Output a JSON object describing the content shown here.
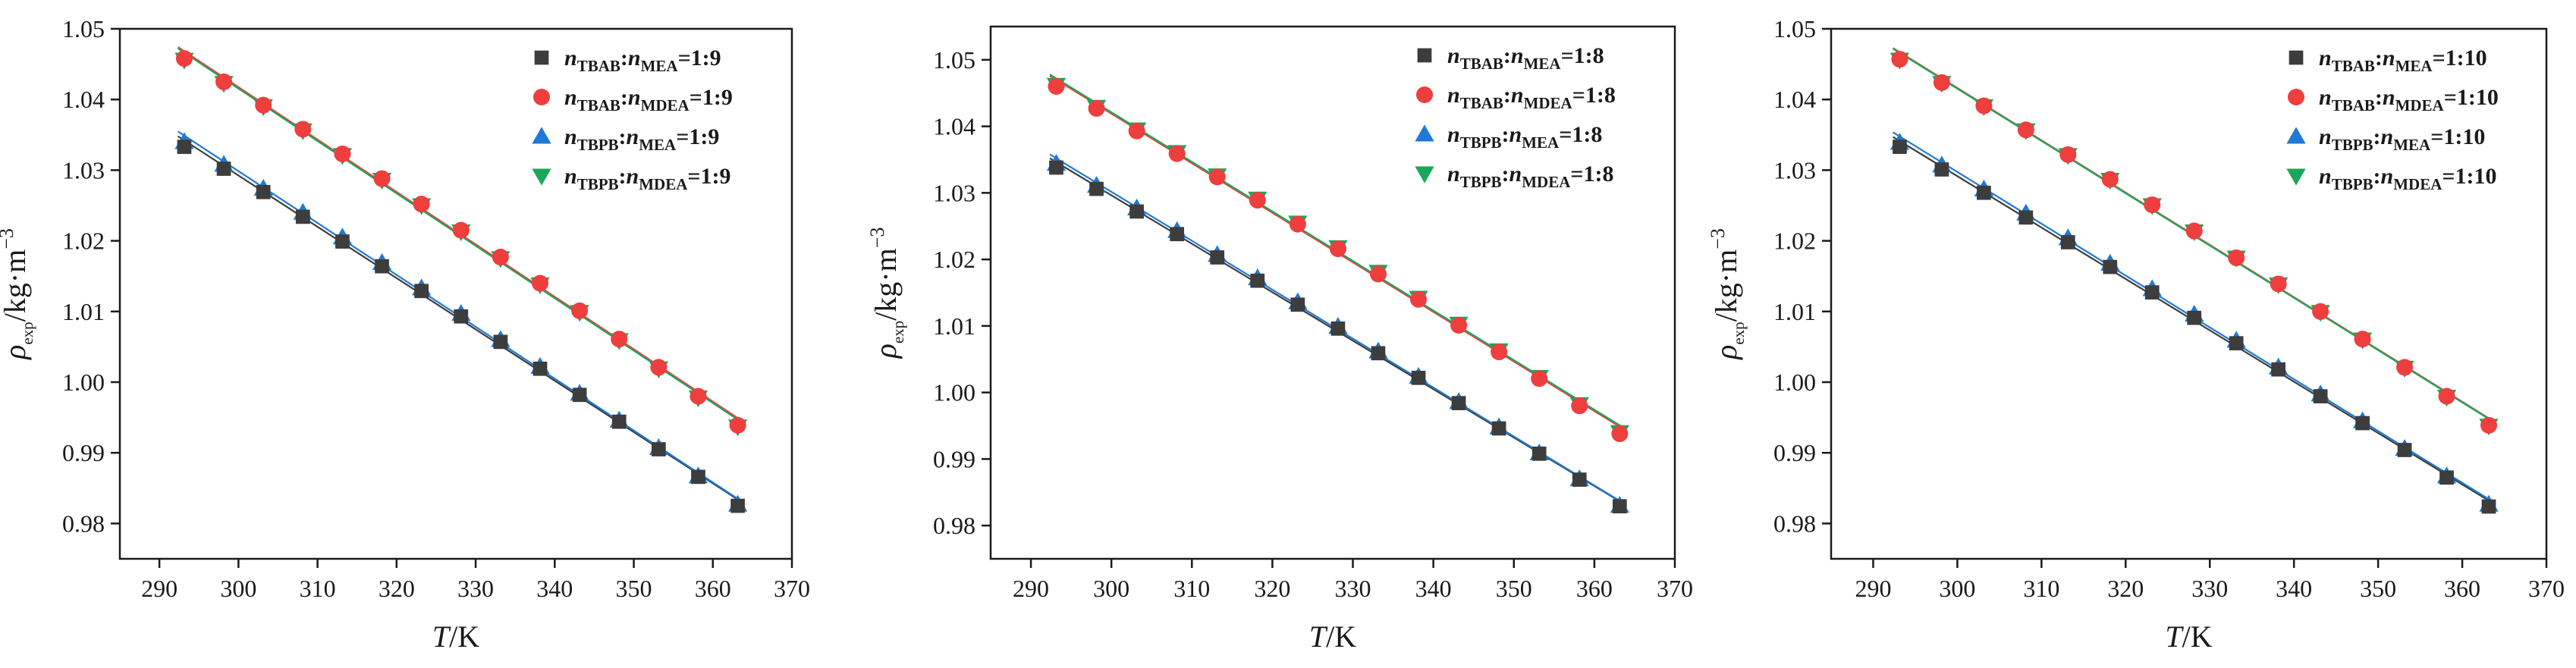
{
  "chart_data": [
    {
      "type": "scatter",
      "panel": "left",
      "title": "",
      "xlabel": {
        "var": "T",
        "unit": "/K"
      },
      "ylabel": {
        "var": "ρ",
        "sub": "exp",
        "unit": "/kg·m",
        "sup": "−3"
      },
      "xlim": [
        285,
        370
      ],
      "ylim": [
        0.975,
        1.05
      ],
      "xticks": [
        290,
        300,
        310,
        320,
        330,
        340,
        350,
        360,
        370
      ],
      "yticks": [
        0.98,
        0.99,
        1.0,
        1.01,
        1.02,
        1.03,
        1.04,
        1.05
      ],
      "ytick_labels": [
        "0.98",
        "0.99",
        "1.00",
        "1.01",
        "1.02",
        "1.03",
        "1.04",
        "1.05"
      ],
      "grid": false,
      "legend_position": "top-right",
      "x": [
        293.15,
        298.15,
        303.15,
        308.15,
        313.15,
        318.15,
        323.15,
        328.15,
        333.15,
        338.15,
        343.15,
        348.15,
        353.15,
        358.15,
        363.15
      ],
      "series": [
        {
          "name": "nTBAB:nMEA=1:9",
          "a": "TBAB",
          "b": "MEA",
          "ratio": "=1:9",
          "marker": "square",
          "color": "#3d3d3d",
          "values": [
            1.0333,
            1.0302,
            1.0269,
            1.0234,
            1.0199,
            1.0164,
            1.0129,
            1.0093,
            1.0057,
            1.0019,
            0.9982,
            0.9944,
            0.9905,
            0.9866,
            0.9825
          ]
        },
        {
          "name": "nTBAB:nMDEA=1:9",
          "a": "TBAB",
          "b": "MDEA",
          "ratio": "=1:9",
          "marker": "circle",
          "color": "#ee3e3e",
          "values": [
            1.0458,
            1.0425,
            1.0392,
            1.0358,
            1.0323,
            1.0288,
            1.0252,
            1.0215,
            1.0177,
            1.014,
            1.0101,
            1.0061,
            1.0021,
            0.998,
            0.9939
          ]
        },
        {
          "name": "nTBPB:nMEA=1:9",
          "a": "TBPB",
          "b": "MEA",
          "ratio": "=1:9",
          "marker": "triangle-up",
          "color": "#1f7ad6",
          "values": [
            1.034,
            1.0308,
            1.0274,
            1.024,
            1.0205,
            1.0169,
            1.0133,
            1.0097,
            1.006,
            1.0022,
            0.9984,
            0.9946,
            0.9907,
            0.9867,
            0.9827
          ]
        },
        {
          "name": "nTBPB:nMDEA=1:9",
          "a": "TBPB",
          "b": "MDEA",
          "ratio": "=1:9",
          "marker": "triangle-down",
          "color": "#19a85a",
          "values": [
            1.0456,
            1.0423,
            1.039,
            1.0356,
            1.0321,
            1.0286,
            1.025,
            1.0213,
            1.0175,
            1.0138,
            1.0099,
            1.0059,
            1.0019,
            0.9978,
            0.9937
          ]
        }
      ]
    },
    {
      "type": "scatter",
      "panel": "middle",
      "title": "",
      "xlabel": {
        "var": "T",
        "unit": "/K"
      },
      "ylabel": {
        "var": "ρ",
        "sub": "exp",
        "unit": "/kg·m",
        "sup": "−3"
      },
      "xlim": [
        285,
        370
      ],
      "ylim": [
        0.975,
        1.055
      ],
      "xticks": [
        290,
        300,
        310,
        320,
        330,
        340,
        350,
        360,
        370
      ],
      "yticks": [
        0.98,
        0.99,
        1.0,
        1.01,
        1.02,
        1.03,
        1.04,
        1.05
      ],
      "ytick_labels": [
        "0.98",
        "0.99",
        "1.00",
        "1.01",
        "1.02",
        "1.03",
        "1.04",
        "1.05"
      ],
      "grid": false,
      "legend_position": "top-right",
      "x": [
        293.15,
        298.15,
        303.15,
        308.15,
        313.15,
        318.15,
        323.15,
        328.15,
        333.15,
        338.15,
        343.15,
        348.15,
        353.15,
        358.15,
        363.15
      ],
      "series": [
        {
          "name": "nTBAB:nMEA=1:8",
          "a": "TBAB",
          "b": "MEA",
          "ratio": "=1:8",
          "marker": "square",
          "color": "#3d3d3d",
          "values": [
            1.0338,
            1.0306,
            1.0272,
            1.0238,
            1.0203,
            1.0168,
            1.0132,
            1.0096,
            1.0059,
            1.0022,
            0.9984,
            0.9946,
            0.9908,
            0.9869,
            0.9829
          ]
        },
        {
          "name": "nTBAB:nMDEA=1:8",
          "a": "TBAB",
          "b": "MDEA",
          "ratio": "=1:8",
          "marker": "circle",
          "color": "#ee3e3e",
          "values": [
            1.046,
            1.0427,
            1.0393,
            1.0359,
            1.0324,
            1.0289,
            1.0253,
            1.0216,
            1.0178,
            1.014,
            1.0101,
            1.0061,
            1.0021,
            0.998,
            0.9938
          ]
        },
        {
          "name": "nTBPB:nMEA=1:8",
          "a": "TBPB",
          "b": "MEA",
          "ratio": "=1:8",
          "marker": "triangle-up",
          "color": "#1f7ad6",
          "values": [
            1.0344,
            1.0311,
            1.0277,
            1.0243,
            1.0207,
            1.0172,
            1.0136,
            1.0099,
            1.0062,
            1.0024,
            0.9986,
            0.9948,
            0.9909,
            0.987,
            0.983
          ]
        },
        {
          "name": "nTBPB:nMDEA=1:8",
          "a": "TBPB",
          "b": "MDEA",
          "ratio": "=1:8",
          "marker": "triangle-down",
          "color": "#19a85a",
          "values": [
            1.0462,
            1.0429,
            1.0395,
            1.0361,
            1.0326,
            1.0291,
            1.0255,
            1.0218,
            1.0181,
            1.0142,
            1.0103,
            1.0063,
            1.0023,
            0.9982,
            0.994
          ]
        }
      ]
    },
    {
      "type": "scatter",
      "panel": "right",
      "title": "",
      "xlabel": {
        "var": "T",
        "unit": "/K"
      },
      "ylabel": {
        "var": "ρ",
        "sub": "exp",
        "unit": "/kg·m",
        "sup": "−3"
      },
      "xlim": [
        285,
        370
      ],
      "ylim": [
        0.975,
        1.05
      ],
      "xticks": [
        290,
        300,
        310,
        320,
        330,
        340,
        350,
        360,
        370
      ],
      "yticks": [
        0.98,
        0.99,
        1.0,
        1.01,
        1.02,
        1.03,
        1.04,
        1.05
      ],
      "ytick_labels": [
        "0.98",
        "0.99",
        "1.00",
        "1.01",
        "1.02",
        "1.03",
        "1.04",
        "1.05"
      ],
      "grid": false,
      "legend_position": "top-right",
      "x": [
        293.15,
        298.15,
        303.15,
        308.15,
        313.15,
        318.15,
        323.15,
        328.15,
        333.15,
        338.15,
        343.15,
        348.15,
        353.15,
        358.15,
        363.15
      ],
      "series": [
        {
          "name": "nTBAB:nMEA=1:10",
          "a": "TBAB",
          "b": "MEA",
          "ratio": "=1:10",
          "marker": "square",
          "color": "#3d3d3d",
          "values": [
            1.0333,
            1.0301,
            1.0268,
            1.0233,
            1.0198,
            1.0163,
            1.0127,
            1.0091,
            1.0055,
            1.0018,
            0.998,
            0.9942,
            0.9904,
            0.9865,
            0.9824
          ]
        },
        {
          "name": "nTBAB:nMDEA=1:10",
          "a": "TBAB",
          "b": "MDEA",
          "ratio": "=1:10",
          "marker": "circle",
          "color": "#ee3e3e",
          "values": [
            1.0457,
            1.0424,
            1.0391,
            1.0357,
            1.0322,
            1.0287,
            1.0251,
            1.0214,
            1.0176,
            1.0139,
            1.01,
            1.0061,
            1.0021,
            0.998,
            0.9939
          ]
        },
        {
          "name": "nTBPB:nMEA=1:10",
          "a": "TBPB",
          "b": "MEA",
          "ratio": "=1:10",
          "marker": "triangle-up",
          "color": "#1f7ad6",
          "values": [
            1.0339,
            1.0307,
            1.0273,
            1.0239,
            1.0204,
            1.0168,
            1.0132,
            1.0096,
            1.0059,
            1.0021,
            0.9983,
            0.9945,
            0.9906,
            0.9867,
            0.9827
          ]
        },
        {
          "name": "nTBPB:nMDEA=1:10",
          "a": "TBPB",
          "b": "MDEA",
          "ratio": "=1:10",
          "marker": "triangle-down",
          "color": "#19a85a",
          "values": [
            1.0456,
            1.0423,
            1.039,
            1.0356,
            1.0321,
            1.0286,
            1.025,
            1.0213,
            1.0176,
            1.0138,
            1.0099,
            1.006,
            1.002,
            0.9979,
            0.9938
          ]
        }
      ]
    }
  ]
}
